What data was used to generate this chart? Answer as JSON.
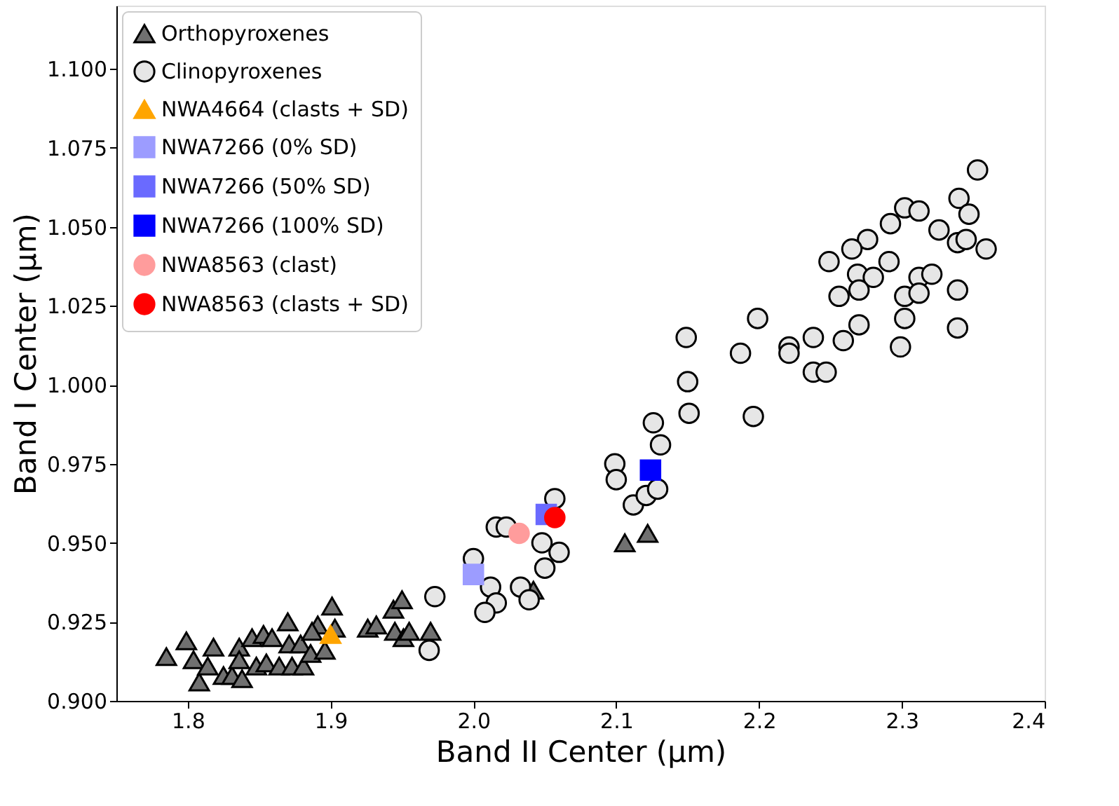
{
  "chart_data": {
    "type": "scatter",
    "xlabel": "Band II Center (μm)",
    "ylabel": "Band I Center (μm)",
    "xlim": [
      1.75,
      2.4
    ],
    "xticks": [
      1.8,
      1.9,
      {
        "value": 2.0,
        "label": "2.0"
      },
      2.1,
      2.2,
      2.3,
      2.4
    ],
    "ylim": [
      0.9,
      1.12
    ],
    "yticks": [
      {
        "value": 0.9,
        "label": "0.900"
      },
      {
        "value": 0.925,
        "label": "0.925"
      },
      {
        "value": 0.95,
        "label": "0.950"
      },
      {
        "value": 0.975,
        "label": "0.975"
      },
      {
        "value": 1.0,
        "label": "1.000"
      },
      {
        "value": 1.025,
        "label": "1.025"
      },
      {
        "value": 1.05,
        "label": "1.050"
      },
      {
        "value": 1.075,
        "label": "1.075"
      },
      {
        "value": 1.1,
        "label": "1.100"
      }
    ],
    "grid": false,
    "legend": "top left",
    "series": [
      {
        "name": "Orthopyroxenes",
        "color": "#707070",
        "marker": "triangle",
        "x": [
          1.785,
          1.799,
          1.804,
          1.808,
          1.814,
          1.818,
          1.825,
          1.831,
          1.836,
          1.838,
          1.836,
          1.845,
          1.853,
          1.859,
          1.848,
          1.855,
          1.87,
          1.871,
          1.864,
          1.873,
          1.881,
          1.879,
          1.886,
          1.891,
          1.887,
          1.896,
          1.901,
          1.903,
          1.926,
          1.932,
          1.944,
          1.95,
          1.945,
          1.951,
          1.955,
          1.97,
          2.042,
          2.106,
          2.122
        ],
        "values": [
          0.914,
          0.919,
          0.913,
          0.906,
          0.911,
          0.917,
          0.908,
          0.908,
          0.917,
          0.907,
          0.913,
          0.92,
          0.921,
          0.92,
          0.911,
          0.912,
          0.925,
          0.918,
          0.911,
          0.911,
          0.911,
          0.918,
          0.915,
          0.924,
          0.922,
          0.916,
          0.93,
          0.923,
          0.923,
          0.924,
          0.929,
          0.932,
          0.922,
          0.92,
          0.922,
          0.922,
          0.935,
          0.95,
          0.953
        ]
      },
      {
        "name": "Clinopyroxenes",
        "color": "#e6e6e6",
        "marker": "circle",
        "x": [
          2.353,
          2.34,
          2.347,
          2.302,
          2.312,
          2.292,
          2.326,
          2.276,
          2.265,
          2.249,
          2.339,
          2.345,
          2.359,
          2.291,
          2.269,
          2.28,
          2.312,
          2.321,
          2.256,
          2.27,
          2.302,
          2.312,
          2.339,
          2.199,
          2.27,
          2.302,
          2.339,
          2.238,
          2.221,
          2.221,
          2.187,
          2.259,
          2.299,
          2.238,
          2.247,
          2.196,
          2.149,
          2.15,
          2.151,
          2.126,
          2.131,
          2.099,
          2.1,
          2.112,
          2.121,
          2.129,
          2.057,
          2.016,
          2.023,
          2.048,
          2.06,
          2.05,
          2.0,
          2.012,
          2.016,
          2.008,
          2.033,
          2.039,
          1.973,
          1.969
        ],
        "values": [
          1.068,
          1.059,
          1.054,
          1.056,
          1.055,
          1.051,
          1.049,
          1.046,
          1.043,
          1.039,
          1.045,
          1.046,
          1.043,
          1.039,
          1.035,
          1.034,
          1.034,
          1.035,
          1.028,
          1.03,
          1.028,
          1.029,
          1.03,
          1.021,
          1.019,
          1.021,
          1.018,
          1.015,
          1.012,
          1.01,
          1.01,
          1.014,
          1.012,
          1.004,
          1.004,
          0.99,
          1.015,
          1.001,
          0.991,
          0.988,
          0.981,
          0.975,
          0.97,
          0.962,
          0.965,
          0.967,
          0.964,
          0.955,
          0.955,
          0.95,
          0.947,
          0.942,
          0.945,
          0.936,
          0.931,
          0.928,
          0.936,
          0.932,
          0.933,
          0.916
        ]
      },
      {
        "name": "NWA4664 (clasts + SD)",
        "color": "#ffa500",
        "marker": "triangle",
        "x": [
          1.9
        ],
        "values": [
          0.921
        ]
      },
      {
        "name": "NWA7266 (0% SD)",
        "color": "#9c9cff",
        "marker": "square",
        "x": [
          2.0
        ],
        "values": [
          0.94
        ]
      },
      {
        "name": "NWA7266 (50% SD)",
        "color": "#6a6aff",
        "marker": "square",
        "x": [
          2.051
        ],
        "values": [
          0.959
        ]
      },
      {
        "name": "NWA7266 (100% SD)",
        "color": "#0000ff",
        "marker": "square",
        "x": [
          2.124
        ],
        "values": [
          0.973
        ]
      },
      {
        "name": "NWA8563 (clast)",
        "color": "#ff9c9c",
        "marker": "circle",
        "x": [
          2.032
        ],
        "values": [
          0.953
        ]
      },
      {
        "name": "NWA8563 (clasts + SD)",
        "color": "#ff0000",
        "marker": "circle",
        "x": [
          2.057
        ],
        "values": [
          0.958
        ]
      }
    ]
  }
}
